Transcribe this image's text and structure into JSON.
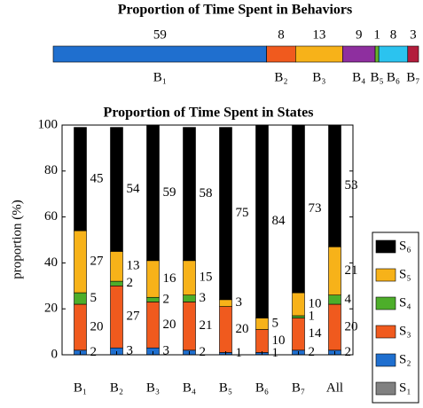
{
  "chart_data": [
    {
      "type": "stacked-hbar",
      "title": "Proportion of Time Spent in Behaviors",
      "categories": [
        "B₁",
        "B₂",
        "B₃",
        "B₄",
        "B₅",
        "B₆",
        "B₇"
      ],
      "values": [
        59,
        8,
        13,
        9,
        1,
        8,
        3
      ],
      "colors": [
        "#1f6fcf",
        "#f05a1e",
        "#f7b219",
        "#8e2f9f",
        "#6ab42d",
        "#2bc3ef",
        "#b31d3c"
      ],
      "xlim": [
        0,
        101
      ]
    },
    {
      "type": "stacked-bar",
      "title": "Proportion of Time Spent in States",
      "ylabel": "proportion (%)",
      "categories": [
        "B₁",
        "B₂",
        "B₃",
        "B₄",
        "B₅",
        "B₆",
        "B₇",
        "All"
      ],
      "series": [
        {
          "name": "S₁",
          "color": "#808080",
          "values": [
            null,
            null,
            null,
            null,
            null,
            null,
            null,
            null
          ]
        },
        {
          "name": "S₂",
          "color": "#1f6fcf",
          "values": [
            2,
            3,
            3,
            2,
            1,
            1,
            2,
            2
          ]
        },
        {
          "name": "S₃",
          "color": "#f05a1e",
          "values": [
            20,
            27,
            20,
            21,
            20,
            10,
            14,
            20
          ]
        },
        {
          "name": "S₄",
          "color": "#4dae2a",
          "values": [
            5,
            2,
            2,
            3,
            null,
            null,
            1,
            4
          ]
        },
        {
          "name": "S₅",
          "color": "#f7b219",
          "values": [
            27,
            13,
            16,
            15,
            3,
            5,
            10,
            21
          ]
        },
        {
          "name": "S₆",
          "color": "#000000",
          "values": [
            45,
            54,
            59,
            58,
            75,
            84,
            73,
            53
          ]
        }
      ],
      "ylim": [
        0,
        100
      ],
      "yticks": [
        0,
        20,
        40,
        60,
        80,
        100
      ],
      "legend": "right"
    }
  ]
}
